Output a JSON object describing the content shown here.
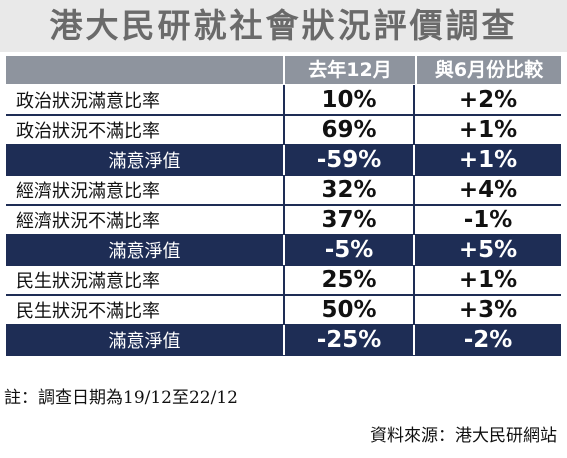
{
  "title": "港大民研就社會狀況評價調查",
  "table": {
    "headers": [
      "",
      "去年12月",
      "與6月份比較"
    ],
    "rows": [
      {
        "label": "政治狀況滿意比率",
        "value": "10%",
        "change": "+2%",
        "highlight": false
      },
      {
        "label": "政治狀況不滿比率",
        "value": "69%",
        "change": "+1%",
        "highlight": false
      },
      {
        "label": "滿意淨值",
        "value": "-59%",
        "change": "+1%",
        "highlight": true
      },
      {
        "label": "經濟狀況滿意比率",
        "value": "32%",
        "change": "+4%",
        "highlight": false
      },
      {
        "label": "經濟狀況不滿比率",
        "value": "37%",
        "change": "-1%",
        "highlight": false
      },
      {
        "label": "滿意淨值",
        "value": "-5%",
        "change": "+5%",
        "highlight": true
      },
      {
        "label": "民生狀況滿意比率",
        "value": "25%",
        "change": "+1%",
        "highlight": false
      },
      {
        "label": "民生狀況不滿比率",
        "value": "50%",
        "change": "+3%",
        "highlight": false
      },
      {
        "label": "滿意淨值",
        "value": "-25%",
        "change": "-2%",
        "highlight": true
      }
    ]
  },
  "note": "註：調查日期為19/12至22/12",
  "source": "資料來源：港大民研網站",
  "colors": {
    "navy": "#1e2d55",
    "header_gray": "#8e949e",
    "title_bg": "#e9e9e9"
  }
}
